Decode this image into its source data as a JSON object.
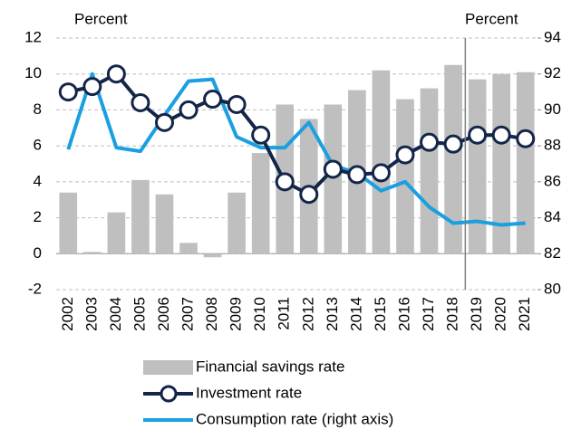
{
  "chart_data": {
    "type": "bar-line",
    "left_axis_label": "Percent",
    "right_axis_label": "Percent",
    "categories": [
      "2002",
      "2003",
      "2004",
      "2005",
      "2006",
      "2007",
      "2008",
      "2009",
      "2010",
      "2011",
      "2012",
      "2013",
      "2014",
      "2015",
      "2016",
      "2017",
      "2018",
      "2019",
      "2020",
      "2021"
    ],
    "series": [
      {
        "name": "Financial savings rate",
        "type": "bar",
        "color": "#bfbfbf",
        "values": [
          3.4,
          0.1,
          2.3,
          4.1,
          3.3,
          0.6,
          -0.2,
          3.4,
          5.6,
          8.3,
          7.5,
          8.3,
          9.1,
          10.2,
          8.6,
          9.2,
          10.5,
          9.7,
          10.0,
          10.1
        ]
      },
      {
        "name": "Investment rate",
        "type": "line-marker",
        "color": "#14254a",
        "values": [
          9.0,
          9.3,
          10.0,
          8.4,
          7.3,
          8.0,
          8.6,
          8.3,
          6.6,
          4.0,
          3.3,
          4.7,
          4.4,
          4.5,
          5.5,
          6.2,
          6.1,
          6.6,
          6.6,
          6.4
        ]
      },
      {
        "name": "Consumption rate (right axis)",
        "type": "line",
        "axis": "y2",
        "color": "#1aa0e0",
        "values": [
          87.8,
          92.0,
          87.9,
          87.7,
          89.7,
          91.6,
          91.7,
          88.5,
          87.9,
          87.9,
          89.3,
          86.9,
          86.5,
          85.5,
          86.0,
          84.6,
          83.7,
          83.8,
          83.6,
          83.7
        ]
      }
    ],
    "ylim": [
      -2,
      12
    ],
    "yticks": [
      -2,
      0,
      2,
      4,
      6,
      8,
      10,
      12
    ],
    "y2lim": [
      80,
      94
    ],
    "y2ticks": [
      80,
      82,
      84,
      86,
      88,
      90,
      92,
      94
    ],
    "grid": true
  }
}
